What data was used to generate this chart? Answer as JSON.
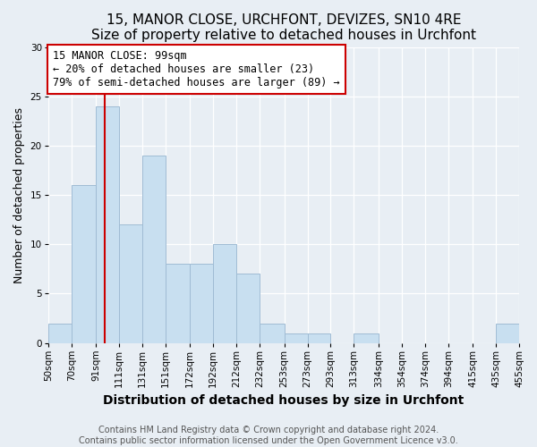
{
  "title": "15, MANOR CLOSE, URCHFONT, DEVIZES, SN10 4RE",
  "subtitle": "Size of property relative to detached houses in Urchfont",
  "xlabel": "Distribution of detached houses by size in Urchfont",
  "ylabel": "Number of detached properties",
  "bin_labels": [
    "50sqm",
    "70sqm",
    "91sqm",
    "111sqm",
    "131sqm",
    "151sqm",
    "172sqm",
    "192sqm",
    "212sqm",
    "232sqm",
    "253sqm",
    "273sqm",
    "293sqm",
    "313sqm",
    "334sqm",
    "354sqm",
    "374sqm",
    "394sqm",
    "415sqm",
    "435sqm",
    "455sqm"
  ],
  "bin_edges": [
    50,
    70,
    91,
    111,
    131,
    151,
    172,
    192,
    212,
    232,
    253,
    273,
    293,
    313,
    334,
    354,
    374,
    394,
    415,
    435,
    455
  ],
  "counts": [
    2,
    16,
    24,
    12,
    19,
    8,
    8,
    10,
    7,
    2,
    1,
    1,
    0,
    1,
    0,
    0,
    0,
    0,
    0,
    2
  ],
  "bar_color": "#c8dff0",
  "bar_edge_color": "#a0bcd4",
  "annotation_line1": "15 MANOR CLOSE: 99sqm",
  "annotation_line2": "← 20% of detached houses are smaller (23)",
  "annotation_line3": "79% of semi-detached houses are larger (89) →",
  "reference_line_x": 99,
  "reference_line_color": "#cc0000",
  "ylim": [
    0,
    30
  ],
  "yticks": [
    0,
    5,
    10,
    15,
    20,
    25,
    30
  ],
  "fig_bg_color": "#e8eef4",
  "axes_bg_color": "#e8eef4",
  "grid_color": "#ffffff",
  "footer_text": "Contains HM Land Registry data © Crown copyright and database right 2024.\nContains public sector information licensed under the Open Government Licence v3.0.",
  "annotation_fontsize": 8.5,
  "title_fontsize": 11,
  "subtitle_fontsize": 9.5,
  "xlabel_fontsize": 10,
  "ylabel_fontsize": 9,
  "tick_fontsize": 7.5,
  "footer_fontsize": 7
}
